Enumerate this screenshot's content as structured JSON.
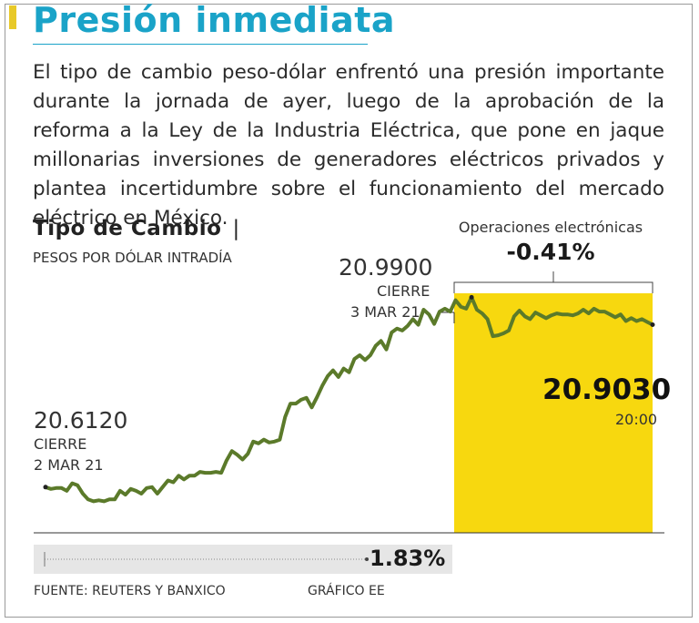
{
  "header": {
    "title": "Presión inmediata"
  },
  "intro": "El tipo de cambio peso-dólar enfrentó una presión importante durante la jornada de ayer, luego de la aprobación de la reforma a la Ley de la Industria Eléctrica, que pone en jaque millonarias inversiones de generadores eléctricos privados y plantea incertidumbre sobre el funcionamiento del mercado eléctrico en México.",
  "chart": {
    "title": "Tipo de Cambio",
    "separator": "|",
    "subtitle": "PESOS POR DÓLAR INTRADÍA",
    "start": {
      "value": "20.6120",
      "label": "CIERRE",
      "date": "2 MAR 21"
    },
    "peak": {
      "value": "20.9900",
      "label": "CIERRE",
      "date": "3 MAR 21"
    },
    "end": {
      "value": "20.9030",
      "time": "20:00"
    },
    "electronic": {
      "label": "Operaciones electrónicas",
      "change": "-0.41%"
    },
    "total_change": "1.83%"
  },
  "chart_data": {
    "type": "line",
    "title": "Tipo de Cambio",
    "subtitle": "PESOS POR DÓLAR INTRADÍA",
    "xlabel": "",
    "ylabel": "Pesos por dólar",
    "ylim": [
      20.53,
      21.08
    ],
    "highlight_region": {
      "from_index": 80,
      "to_index": 114,
      "label": "Operaciones electrónicas",
      "change": "-0.41%"
    },
    "series": [
      {
        "name": "Tipo de cambio peso-dólar",
        "values": [
          20.612,
          20.6086,
          20.6103,
          20.6103,
          20.6052,
          20.6188,
          20.6154,
          20.6001,
          20.5899,
          20.5865,
          20.5882,
          20.5865,
          20.5899,
          20.5899,
          20.6052,
          20.5984,
          20.6086,
          20.6052,
          20.6001,
          20.6103,
          20.612,
          20.6001,
          20.612,
          20.6239,
          20.6205,
          20.6324,
          20.6256,
          20.6324,
          20.6324,
          20.6392,
          20.6375,
          20.6375,
          20.6392,
          20.6375,
          20.6596,
          20.6766,
          20.6698,
          20.6613,
          20.6715,
          20.6936,
          20.6902,
          20.697,
          20.6919,
          20.6936,
          20.697,
          20.7378,
          20.7616,
          20.7616,
          20.7684,
          20.7718,
          20.7548,
          20.7735,
          20.7939,
          20.8109,
          20.8211,
          20.8092,
          20.8245,
          20.8177,
          20.8415,
          20.8483,
          20.8398,
          20.8483,
          20.8653,
          20.8738,
          20.8585,
          20.8891,
          20.8959,
          20.8925,
          20.901,
          20.9129,
          20.9027,
          20.9299,
          20.9214,
          20.9044,
          20.9265,
          20.9316,
          20.9265,
          20.9469,
          20.935,
          20.9316,
          20.952,
          20.9299,
          20.9231,
          20.9129,
          20.8823,
          20.884,
          20.8874,
          20.8925,
          20.918,
          20.9282,
          20.918,
          20.9129,
          20.9248,
          20.9197,
          20.9146,
          20.9197,
          20.9231,
          20.9214,
          20.9214,
          20.9197,
          20.9231,
          20.9299,
          20.9231,
          20.9316,
          20.9265,
          20.9265,
          20.9214,
          20.9163,
          20.9214,
          20.9095,
          20.9146,
          20.9095,
          20.9129,
          20.9078,
          20.903
        ]
      }
    ],
    "annotations": [
      {
        "value": 20.612,
        "text": "CIERRE 2 MAR 21"
      },
      {
        "value": 20.99,
        "text": "CIERRE 3 MAR 21"
      },
      {
        "value": 20.903,
        "text": "20:00"
      }
    ],
    "grid": false
  },
  "footer": {
    "source": "FUENTE: REUTERS Y BANXICO",
    "credit": "GRÁFICO EE"
  }
}
